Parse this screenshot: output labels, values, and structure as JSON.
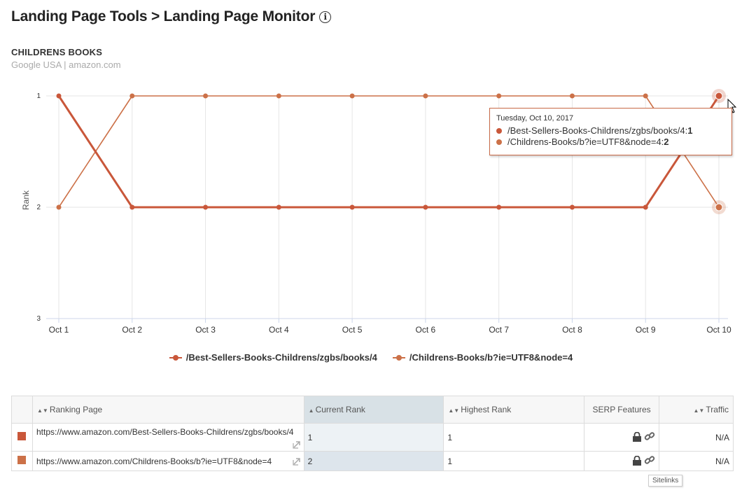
{
  "header": {
    "title": "Landing Page Tools > Landing Page Monitor",
    "info_icon": "info-icon"
  },
  "keyword": {
    "title": "CHILDRENS BOOKS",
    "subtitle": "Google USA | amazon.com"
  },
  "chart_data": {
    "type": "line",
    "categories": [
      "Oct 1",
      "Oct 2",
      "Oct 3",
      "Oct 4",
      "Oct 5",
      "Oct 6",
      "Oct 7",
      "Oct 8",
      "Oct 9",
      "Oct 10"
    ],
    "ylabel": "Rank",
    "ylim": [
      1,
      3
    ],
    "y_reversed": true,
    "yticks": [
      "1",
      "2",
      "3"
    ],
    "grid": true,
    "legend_position": "bottom",
    "series": [
      {
        "name": "/Best-Sellers-Books-Childrens/zgbs/books/4",
        "color": "#c9573a",
        "values": [
          1,
          2,
          2,
          2,
          2,
          2,
          2,
          2,
          2,
          1
        ]
      },
      {
        "name": "/Childrens-Books/b?ie=UTF8&node=4",
        "color": "#cc7148",
        "values": [
          2,
          1,
          1,
          1,
          1,
          1,
          1,
          1,
          1,
          2
        ]
      }
    ]
  },
  "tooltip": {
    "date": "Tuesday, Oct 10, 2017",
    "rows": [
      {
        "label": "/Best-Sellers-Books-Childrens/zgbs/books/4: ",
        "value": "1",
        "color": "#c9573a"
      },
      {
        "label": "/Childrens-Books/b?ie=UTF8&node=4: ",
        "value": "2",
        "color": "#cc7148"
      }
    ]
  },
  "table": {
    "headers": {
      "ranking_page": "Ranking Page",
      "current_rank": "Current Rank",
      "highest_rank": "Highest Rank",
      "serp_features": "SERP Features",
      "traffic": "Traffic"
    },
    "rows": [
      {
        "color": "#c9573a",
        "url": "https://www.amazon.com/Best-Sellers-Books-Childrens/zgbs/books/4",
        "current_rank": "1",
        "highest_rank": "1",
        "traffic": "N/A"
      },
      {
        "color": "#cc7148",
        "url": "https://www.amazon.com/Childrens-Books/b?ie=UTF8&node=4",
        "current_rank": "2",
        "highest_rank": "1",
        "traffic": "N/A"
      }
    ],
    "serp_icons": [
      "lock-icon",
      "link-icon"
    ]
  },
  "small_tooltip": "Sitelinks"
}
